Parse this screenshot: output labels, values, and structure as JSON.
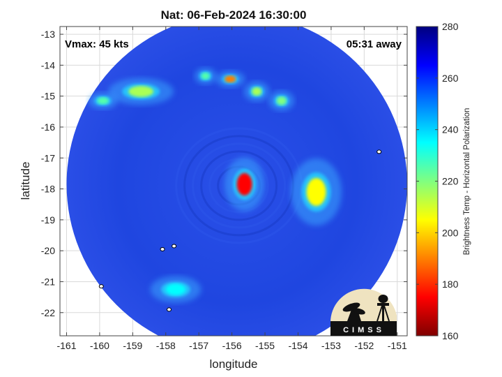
{
  "figure": {
    "title": "Nat: 06-Feb-2024 16:30:00",
    "vmax_label": "Vmax: 45 kts",
    "time_label": "05:31 away",
    "xlabel": "longitude",
    "ylabel": "latitude",
    "colorbar_label": "Brightness Temp - Horizontal Polarization",
    "logo_text": "CIMSS"
  },
  "map": {
    "xlim": [
      -161.2,
      -150.7
    ],
    "ylim": [
      -22.75,
      -12.75
    ],
    "xticks": [
      -161,
      -160,
      -159,
      -158,
      -157,
      -156,
      -155,
      -154,
      -153,
      -152,
      -151
    ],
    "yticks": [
      -13,
      -14,
      -15,
      -16,
      -17,
      -18,
      -19,
      -20,
      -21,
      -22
    ],
    "swath_center": [
      -155.85,
      -17.85
    ],
    "swath_radius_deg": 5.15,
    "background_color": "#1f46e0",
    "features": [
      {
        "name": "storm-core",
        "lon": -155.62,
        "lat": -17.85,
        "tb": 175
      },
      {
        "name": "rainband-east",
        "lon": -153.45,
        "lat": -18.1,
        "tb": 205
      },
      {
        "name": "band-north-1",
        "lon": -156.05,
        "lat": -14.45,
        "tb": 190
      },
      {
        "name": "band-north-2",
        "lon": -155.25,
        "lat": -14.85,
        "tb": 215
      },
      {
        "name": "band-north-3",
        "lon": -154.5,
        "lat": -15.15,
        "tb": 220
      },
      {
        "name": "band-north-4",
        "lon": -156.8,
        "lat": -14.35,
        "tb": 225
      },
      {
        "name": "cloud-northwest",
        "lon": -158.75,
        "lat": -14.85,
        "tb": 215
      },
      {
        "name": "cloud-west",
        "lon": -159.9,
        "lat": -15.15,
        "tb": 225
      },
      {
        "name": "cloud-south",
        "lon": -157.7,
        "lat": -21.25,
        "tb": 235
      }
    ],
    "islands": [
      {
        "name": "island-east",
        "lon": -151.55,
        "lat": -16.8
      },
      {
        "name": "island-1",
        "lon": -158.1,
        "lat": -19.95
      },
      {
        "name": "island-2",
        "lon": -157.75,
        "lat": -19.85
      },
      {
        "name": "island-3",
        "lon": -157.9,
        "lat": -21.9
      },
      {
        "name": "island-4",
        "lon": -159.95,
        "lat": -21.15
      }
    ]
  },
  "colorbar": {
    "min": 160,
    "max": 280,
    "ticks": [
      160,
      180,
      200,
      220,
      240,
      260,
      280
    ],
    "colors": [
      "#7f0000",
      "#ff0000",
      "#ff8000",
      "#ffff00",
      "#80ff80",
      "#00ffff",
      "#0080ff",
      "#0000ff",
      "#00007f"
    ]
  }
}
